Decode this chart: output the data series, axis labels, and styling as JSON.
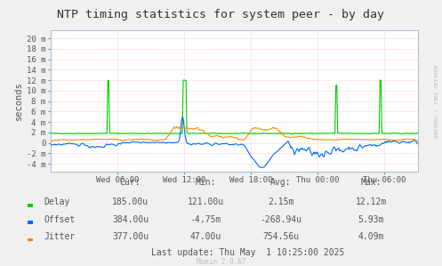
{
  "title": "NTP timing statistics for system peer - by day",
  "ylabel": "seconds",
  "background_color": "#F0F0F0",
  "plot_bg_color": "#FFFFFF",
  "grid_color": "#FF9999",
  "yticks_labels": [
    "20 m",
    "18 m",
    "16 m",
    "14 m",
    "12 m",
    "10 m",
    "8 m",
    "6 m",
    "4 m",
    "2 m",
    "0",
    "-2 m",
    "-4 m"
  ],
  "yticks_vals": [
    0.02,
    0.018,
    0.016,
    0.014,
    0.012,
    0.01,
    0.008,
    0.006,
    0.004,
    0.002,
    0.0,
    -0.002,
    -0.004
  ],
  "ylim": [
    -0.0055,
    0.0215
  ],
  "xtick_labels": [
    "Wed 06:00",
    "Wed 12:00",
    "Wed 18:00",
    "Thu 00:00",
    "Thu 06:00"
  ],
  "delay_color": "#00CC00",
  "offset_color": "#0066FF",
  "jitter_color": "#FF8800",
  "watermark_color": "#BBBBBB",
  "title_color": "#333333",
  "label_color": "#555555",
  "stats_color": "#555555",
  "legend": {
    "Delay": {
      "cur": "185.00u",
      "min": "121.00u",
      "avg": "2.15m",
      "max": "12.12m"
    },
    "Offset": {
      "cur": "384.00u",
      "min": "-4.75m",
      "avg": "-268.94u",
      "max": "5.93m"
    },
    "Jitter": {
      "cur": "377.00u",
      "min": "47.00u",
      "avg": "754.56u",
      "max": "4.09m"
    }
  },
  "last_update": "Last update: Thu May  1 10:25:00 2025",
  "munin_version": "Munin 2.0.67",
  "rrdtool_watermark": "RRDTOOL / TOBI OETIKER",
  "tick_hours": [
    6,
    12,
    18,
    24,
    30
  ],
  "total_hours": 33
}
